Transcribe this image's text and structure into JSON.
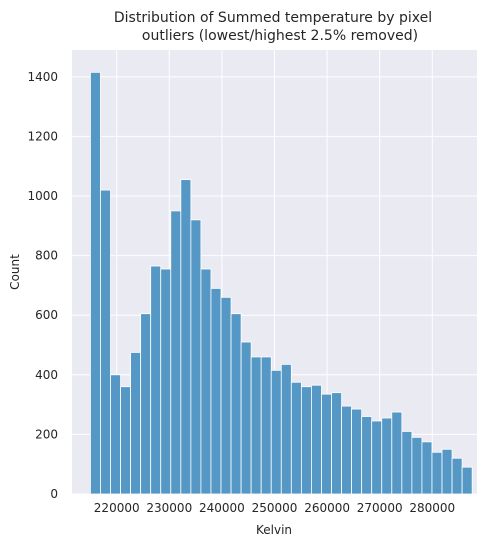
{
  "chart_data": {
    "type": "bar",
    "title_line1": "Distribution of Summed temperature by pixel",
    "title_line2": "outliers (lowest/highest 2.5% removed)",
    "xlabel": "Kelvin",
    "ylabel": "Count",
    "xlim": [
      211500,
      288500
    ],
    "ylim": [
      0,
      1490
    ],
    "xticks": [
      220000,
      230000,
      240000,
      250000,
      260000,
      270000,
      280000
    ],
    "xtick_labels": [
      "220000",
      "230000",
      "240000",
      "250000",
      "260000",
      "270000",
      "280000"
    ],
    "yticks": [
      0,
      200,
      400,
      600,
      800,
      1000,
      1200,
      1400
    ],
    "ytick_labels": [
      "0",
      "200",
      "400",
      "600",
      "800",
      "1000",
      "1200",
      "1400"
    ],
    "grid": true,
    "bin_start": 215000,
    "bin_width": 1910,
    "values": [
      1415,
      1020,
      400,
      360,
      475,
      605,
      765,
      755,
      950,
      1055,
      920,
      755,
      690,
      660,
      605,
      510,
      460,
      460,
      415,
      435,
      375,
      360,
      365,
      335,
      340,
      295,
      285,
      260,
      245,
      255,
      275,
      210,
      190,
      175,
      140,
      150,
      120,
      90
    ],
    "colors": {
      "background": "#eaeaf2",
      "grid": "#ffffff",
      "bar_fill": "#5598c5",
      "bar_edge": "#ffffff",
      "text": "#262626"
    }
  }
}
